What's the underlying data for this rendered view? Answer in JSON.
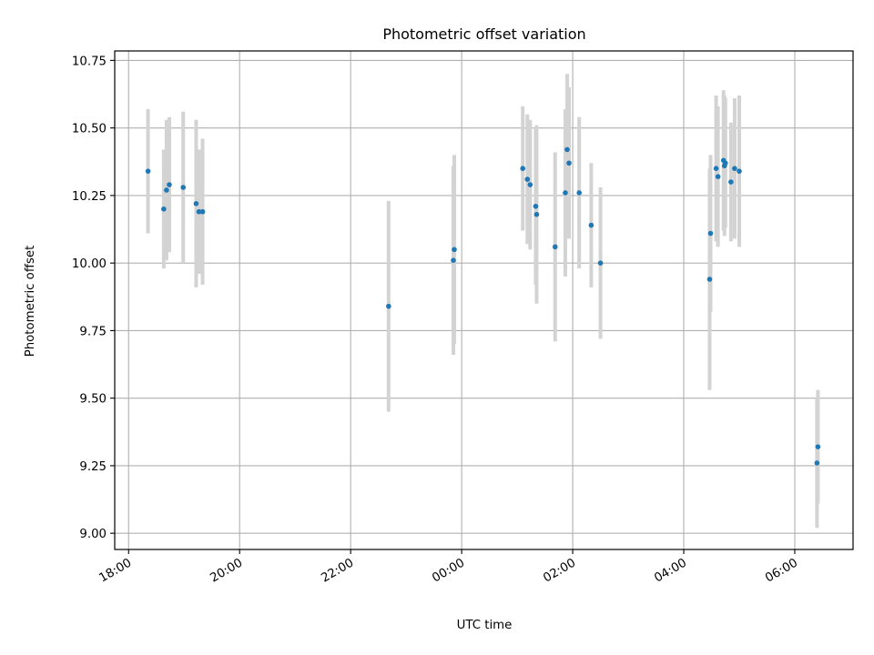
{
  "chart_data": {
    "type": "scatter",
    "title": "Photometric offset variation",
    "xlabel": "UTC time",
    "ylabel": "Photometric offset",
    "x_axis": "time",
    "x_origin_label": "18:00",
    "x_tick_labels": [
      "18:00",
      "20:00",
      "22:00",
      "00:00",
      "02:00",
      "04:00",
      "06:00"
    ],
    "x_tick_hours": [
      0,
      2,
      4,
      6,
      8,
      10,
      12
    ],
    "xlim_hours": [
      -0.25,
      13.05
    ],
    "y_tick_labels": [
      "9.00",
      "9.25",
      "9.50",
      "9.75",
      "10.00",
      "10.25",
      "10.50",
      "10.75"
    ],
    "y_ticks": [
      9.0,
      9.25,
      9.5,
      9.75,
      10.0,
      10.25,
      10.5,
      10.75
    ],
    "ylim": [
      8.94,
      10.785
    ],
    "grid": true,
    "marker_color": "#1f77b4",
    "errorbar_color": "#d3d3d3",
    "points": [
      {
        "time": "18:21",
        "y": 10.34,
        "err": 0.23
      },
      {
        "time": "18:38",
        "y": 10.2,
        "err": 0.22
      },
      {
        "time": "18:41",
        "y": 10.27,
        "err": 0.26
      },
      {
        "time": "18:44",
        "y": 10.29,
        "err": 0.25
      },
      {
        "time": "18:59",
        "y": 10.28,
        "err": 0.28
      },
      {
        "time": "19:13",
        "y": 10.22,
        "err": 0.31
      },
      {
        "time": "19:16",
        "y": 10.19,
        "err": 0.23
      },
      {
        "time": "19:20",
        "y": 10.19,
        "err": 0.27
      },
      {
        "time": "22:41",
        "y": 9.84,
        "err": 0.39
      },
      {
        "time": "23:51",
        "y": 10.01,
        "err": 0.35
      },
      {
        "time": "23:52",
        "y": 10.05,
        "err": 0.35
      },
      {
        "time": "01:06",
        "y": 10.35,
        "err": 0.23
      },
      {
        "time": "01:11",
        "y": 10.31,
        "err": 0.24
      },
      {
        "time": "01:14",
        "y": 10.29,
        "err": 0.24
      },
      {
        "time": "01:20",
        "y": 10.21,
        "err": 0.29
      },
      {
        "time": "01:21",
        "y": 10.18,
        "err": 0.33
      },
      {
        "time": "01:41",
        "y": 10.06,
        "err": 0.35
      },
      {
        "time": "01:52",
        "y": 10.26,
        "err": 0.31
      },
      {
        "time": "01:54",
        "y": 10.42,
        "err": 0.28
      },
      {
        "time": "01:56",
        "y": 10.37,
        "err": 0.28
      },
      {
        "time": "02:07",
        "y": 10.26,
        "err": 0.28
      },
      {
        "time": "02:20",
        "y": 10.14,
        "err": 0.23
      },
      {
        "time": "02:30",
        "y": 10.0,
        "err": 0.28
      },
      {
        "time": "04:28",
        "y": 9.94,
        "err": 0.41
      },
      {
        "time": "04:29",
        "y": 10.11,
        "err": 0.29
      },
      {
        "time": "04:35",
        "y": 10.35,
        "err": 0.27
      },
      {
        "time": "04:37",
        "y": 10.32,
        "err": 0.26
      },
      {
        "time": "04:43",
        "y": 10.38,
        "err": 0.26
      },
      {
        "time": "04:44",
        "y": 10.36,
        "err": 0.26
      },
      {
        "time": "04:45",
        "y": 10.37,
        "err": 0.24
      },
      {
        "time": "04:51",
        "y": 10.3,
        "err": 0.22
      },
      {
        "time": "04:55",
        "y": 10.35,
        "err": 0.26
      },
      {
        "time": "05:00",
        "y": 10.34,
        "err": 0.28
      },
      {
        "time": "06:24",
        "y": 9.26,
        "err": 0.24
      },
      {
        "time": "06:25",
        "y": 9.32,
        "err": 0.21
      }
    ]
  }
}
